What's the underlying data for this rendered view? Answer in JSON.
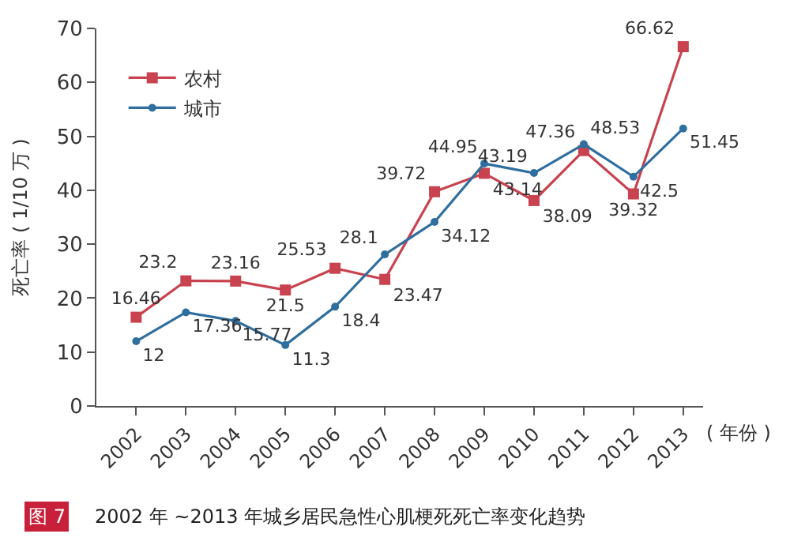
{
  "chart_data": {
    "type": "line",
    "xlabel": "( 年份 )",
    "ylabel": "死亡率 ( 1/10 万 )",
    "categories": [
      "2002",
      "2003",
      "2004",
      "2005",
      "2006",
      "2007",
      "2008",
      "2009",
      "2010",
      "2011",
      "2012",
      "2013"
    ],
    "series": [
      {
        "name": "农村",
        "color": "#c8424f",
        "marker": "square",
        "values": [
          16.46,
          23.2,
          23.16,
          21.5,
          25.53,
          23.47,
          39.72,
          43.14,
          38.09,
          47.36,
          39.32,
          66.62
        ]
      },
      {
        "name": "城市",
        "color": "#2f6f9f",
        "marker": "circle",
        "values": [
          12,
          17.36,
          15.77,
          11.3,
          18.4,
          28.1,
          34.12,
          44.95,
          43.19,
          48.53,
          42.5,
          51.45
        ]
      }
    ],
    "ylim": [
      0,
      70
    ],
    "yticks": [
      0,
      10,
      20,
      30,
      40,
      50,
      60,
      70
    ],
    "data_labels": true,
    "grid": false,
    "legend": "top left",
    "line_style": "solid",
    "annotations": [
      "图 7",
      "2002 年 ~2013 年城乡居民急性心肌梗死死亡率变化趋势"
    ]
  }
}
